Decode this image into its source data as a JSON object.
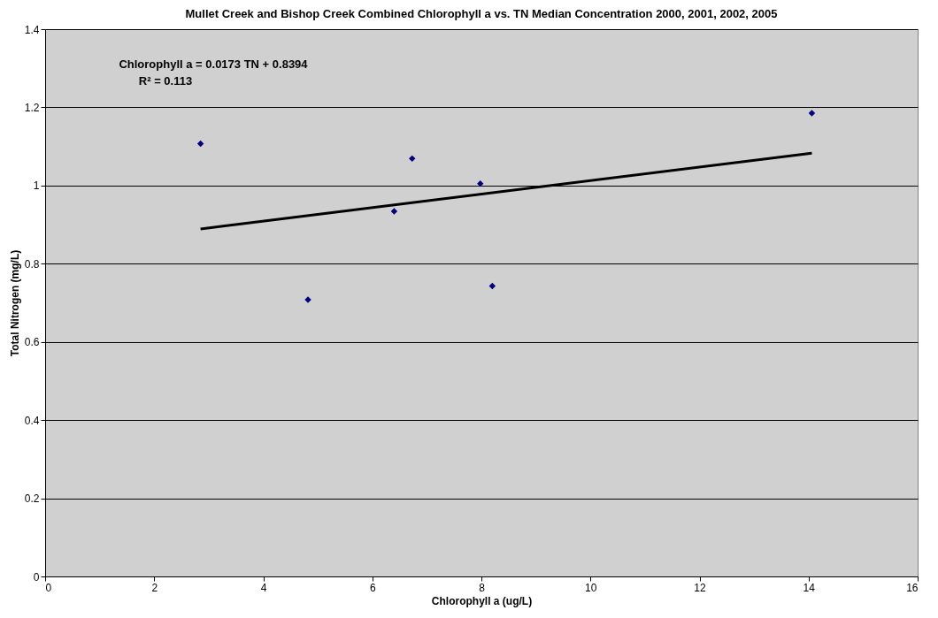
{
  "chart_data": {
    "type": "scatter",
    "title": "Mullet Creek and Bishop Creek Combined Chlorophyll a vs. TN Median Concentration 2000, 2001, 2002, 2005",
    "xlabel": "Chlorophyll a (ug/L)",
    "ylabel": "Total Nitrogen (mg/L)",
    "x": [
      2.85,
      4.82,
      6.4,
      6.73,
      7.98,
      8.2,
      14.06
    ],
    "series": [
      {
        "color": "#000080",
        "marker": "diamond",
        "values": [
          1.107,
          0.708,
          0.934,
          1.069,
          1.005,
          0.743,
          1.185
        ]
      },
      {
        "type": "line",
        "color": "#000000",
        "marker": "none",
        "line_style": "solid",
        "x": [
          2.85,
          14.06
        ],
        "values": [
          0.889,
          1.083
        ]
      }
    ],
    "annotations": [
      "Chlorophyll a = 0.0173 TN + 0.8394",
      "R² = 0.113"
    ],
    "xlim": [
      0,
      16
    ],
    "xticks": [
      0,
      2,
      4,
      6,
      8,
      10,
      12,
      14,
      16
    ],
    "ylim": [
      0,
      1.4
    ],
    "yticks": [
      0,
      0.2,
      0.4,
      0.6,
      0.8,
      1,
      1.2,
      1.4
    ],
    "grid": "y"
  }
}
